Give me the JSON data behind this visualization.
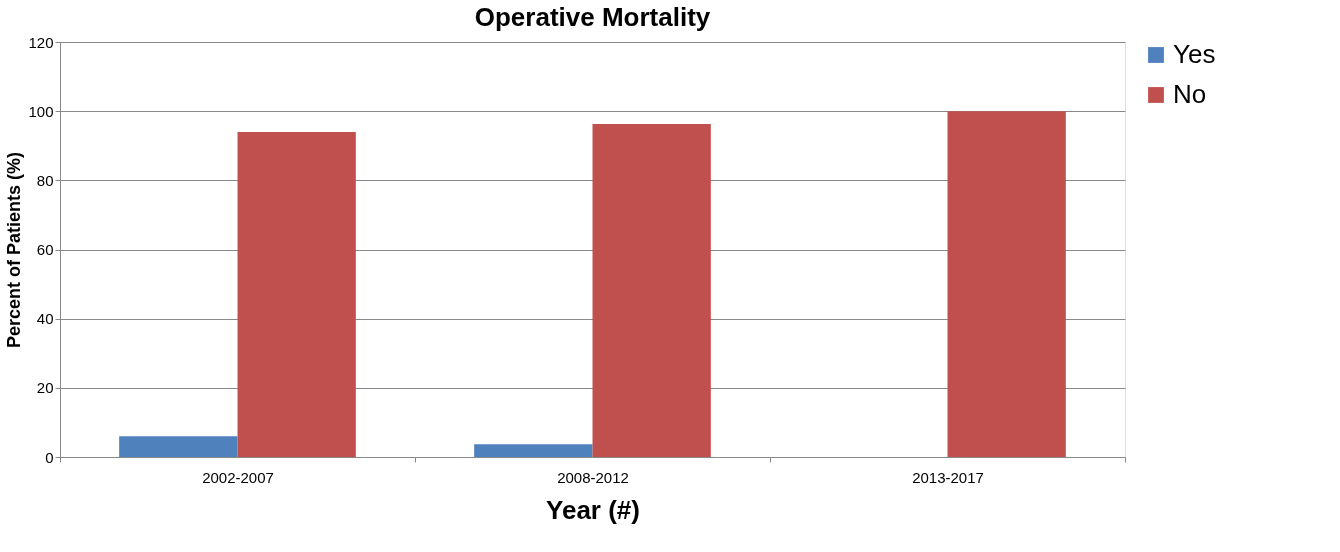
{
  "chart_data": {
    "type": "bar",
    "title": "Operative Mortality",
    "xlabel": "Year (#)",
    "ylabel": "Percent of Patients (%)",
    "categories": [
      "2002-2007",
      "2008-2012",
      "2013-2017"
    ],
    "series": [
      {
        "name": "Yes",
        "color": "#4f81bd",
        "values": [
          6,
          3.7,
          0
        ]
      },
      {
        "name": "No",
        "color": "#c0504d",
        "values": [
          94,
          96.3,
          100
        ]
      }
    ],
    "ylim": [
      0,
      120
    ],
    "yticks": [
      0,
      20,
      40,
      60,
      80,
      100,
      120
    ],
    "grid": "y",
    "legend": "right"
  }
}
